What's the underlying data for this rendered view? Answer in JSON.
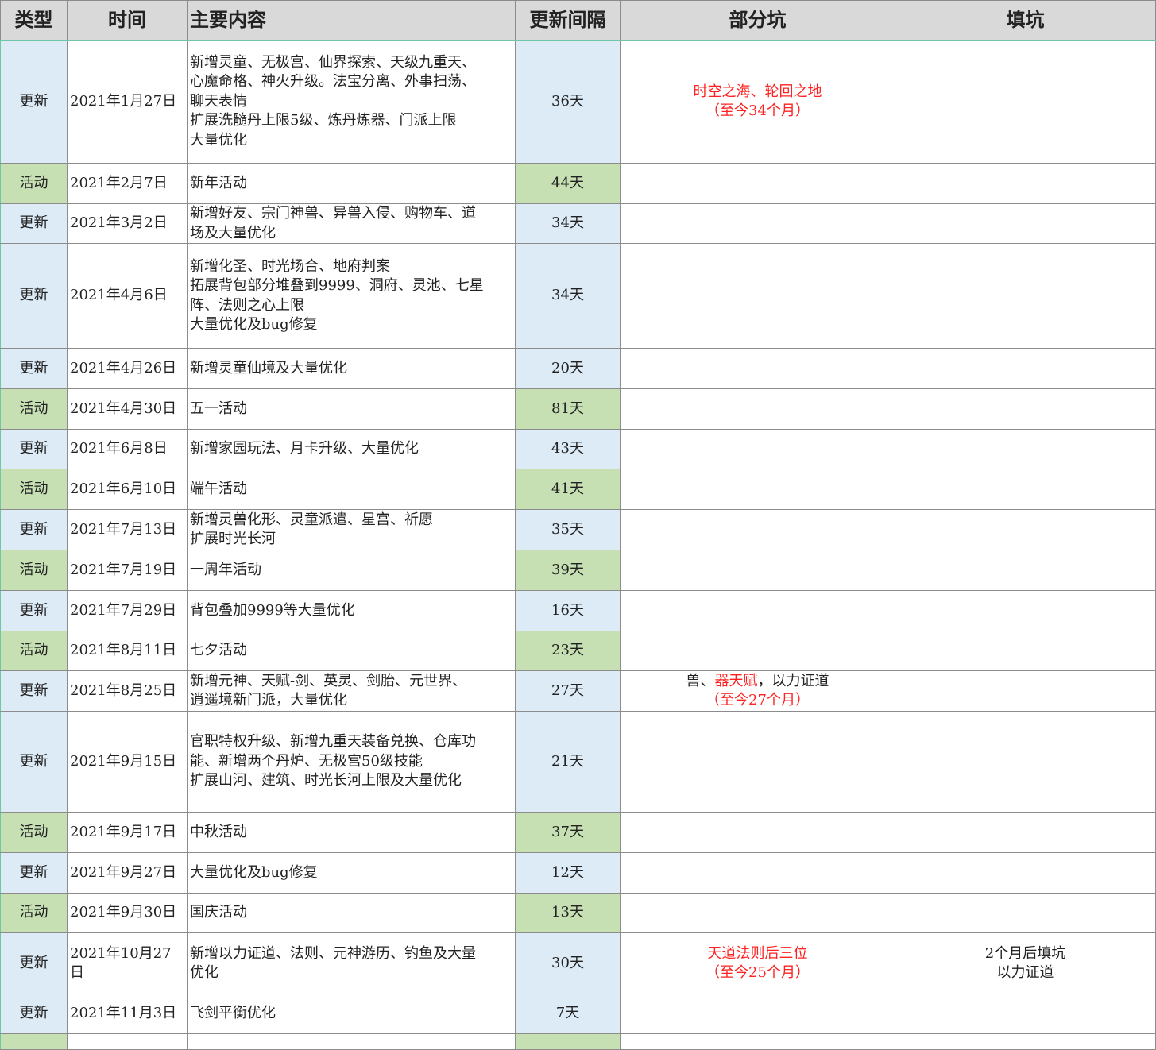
{
  "headers": [
    "类型",
    "时间",
    "主要内容",
    "更新间隔",
    "部分坑",
    "填坑"
  ],
  "colors": {
    "update": "#ddebf7",
    "activity": "#c6e0b4",
    "header": "#d9d9d9",
    "highlight": "#ff2222"
  },
  "rows": [
    {
      "type": "更新",
      "kind": "upd",
      "date": "2021年1月27日",
      "content": "新增灵童、无极宫、仙界探索、天级九重天、\n心魔命格、神火升级。法宝分离、外事扫荡、\n聊天表情\n扩展洗髓丹上限5级、炼丹炼器、门派上限\n大量优化",
      "gap": "36天",
      "pit": [
        {
          "t": "时空之海、轮回之地\n（至今34个月）",
          "red": true
        }
      ],
      "fill": "",
      "h": 155
    },
    {
      "type": "活动",
      "kind": "act",
      "date": "2021年2月7日",
      "content": "新年活动",
      "gap": "44天",
      "pit": [],
      "fill": "",
      "h": 51
    },
    {
      "type": "更新",
      "kind": "upd",
      "date": "2021年3月2日",
      "content": "新增好友、宗门神兽、异兽入侵、购物车、道\n场及大量优化",
      "gap": "34天",
      "pit": [],
      "fill": "",
      "h": 50
    },
    {
      "type": "更新",
      "kind": "upd",
      "date": "2021年4月6日",
      "content": "新增化圣、时光场合、地府判案\n拓展背包部分堆叠到9999、洞府、灵池、七星\n阵、法则之心上限\n大量优化及bug修复",
      "gap": "34天",
      "pit": [],
      "fill": "",
      "h": 132
    },
    {
      "type": "更新",
      "kind": "upd",
      "date": "2021年4月26日",
      "content": "新增灵童仙境及大量优化",
      "gap": "20天",
      "pit": [],
      "fill": "",
      "h": 51
    },
    {
      "type": "活动",
      "kind": "act",
      "date": "2021年4月30日",
      "content": "五一活动",
      "gap": "81天",
      "pit": [],
      "fill": "",
      "h": 51
    },
    {
      "type": "更新",
      "kind": "upd",
      "date": "2021年6月8日",
      "content": "新增家园玩法、月卡升级、大量优化",
      "gap": "43天",
      "pit": [],
      "fill": "",
      "h": 50
    },
    {
      "type": "活动",
      "kind": "act",
      "date": "2021年6月10日",
      "content": "端午活动",
      "gap": "41天",
      "pit": [],
      "fill": "",
      "h": 51
    },
    {
      "type": "更新",
      "kind": "upd",
      "date": "2021年7月13日",
      "content": "新增灵兽化形、灵童派遣、星宫、祈愿\n扩展时光长河",
      "gap": "35天",
      "pit": [],
      "fill": "",
      "h": 51
    },
    {
      "type": "活动",
      "kind": "act",
      "date": "2021年7月19日",
      "content": "一周年活动",
      "gap": "39天",
      "pit": [],
      "fill": "",
      "h": 51
    },
    {
      "type": "更新",
      "kind": "upd",
      "date": "2021年7月29日",
      "content": "背包叠加9999等大量优化",
      "gap": "16天",
      "pit": [],
      "fill": "",
      "h": 51
    },
    {
      "type": "活动",
      "kind": "act",
      "date": "2021年8月11日",
      "content": "七夕活动",
      "gap": "23天",
      "pit": [],
      "fill": "",
      "h": 50
    },
    {
      "type": "更新",
      "kind": "upd",
      "date": "2021年8月25日",
      "content": "新增元神、天赋-剑、英灵、剑胎、元世界、\n逍遥境新门派，大量优化",
      "gap": "27天",
      "pit": [
        {
          "t": "兽、",
          "red": false
        },
        {
          "t": "器天赋",
          "red": true
        },
        {
          "t": "，以力证道\n",
          "red": false
        },
        {
          "t": "（至今27个月）",
          "red": true
        }
      ],
      "fill": "",
      "h": 51
    },
    {
      "type": "更新",
      "kind": "upd",
      "date": "2021年9月15日",
      "content": "官职特权升级、新增九重天装备兑换、仓库功\n能、新增两个丹炉、无极宫50级技能\n扩展山河、建筑、时光长河上限及大量优化",
      "gap": "21天",
      "pit": [],
      "fill": "",
      "h": 127
    },
    {
      "type": "活动",
      "kind": "act",
      "date": "2021年9月17日",
      "content": "中秋活动",
      "gap": "37天",
      "pit": [],
      "fill": "",
      "h": 51
    },
    {
      "type": "更新",
      "kind": "upd",
      "date": "2021年9月27日",
      "content": "大量优化及bug修复",
      "gap": "12天",
      "pit": [],
      "fill": "",
      "h": 51
    },
    {
      "type": "活动",
      "kind": "act",
      "date": "2021年9月30日",
      "content": "国庆活动",
      "gap": "13天",
      "pit": [],
      "fill": "",
      "h": 50
    },
    {
      "type": "更新",
      "kind": "upd",
      "date": "2021年10月27日",
      "content": "新增以力证道、法则、元神游历、钓鱼及大量\n优化",
      "gap": "30天",
      "pit": [
        {
          "t": "天道法则后三位\n（至今25个月）",
          "red": true
        }
      ],
      "fill": "2个月后填坑\n以力证道",
      "h": 77
    },
    {
      "type": "更新",
      "kind": "upd",
      "date": "2021年11月3日",
      "content": "飞剑平衡优化",
      "gap": "7天",
      "pit": [],
      "fill": "",
      "h": 50
    },
    {
      "type": "",
      "kind": "act",
      "date": "",
      "content": "",
      "gap": "",
      "pit": [],
      "fill": "",
      "h": 20
    }
  ]
}
